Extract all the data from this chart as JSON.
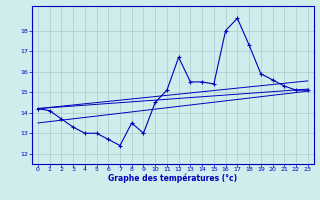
{
  "hours": [
    0,
    1,
    2,
    3,
    4,
    5,
    6,
    7,
    8,
    9,
    10,
    11,
    12,
    13,
    14,
    15,
    16,
    17,
    18,
    19,
    20,
    21,
    22,
    23
  ],
  "temp": [
    14.2,
    14.1,
    13.7,
    13.3,
    13.0,
    13.0,
    12.7,
    12.4,
    13.5,
    13.0,
    14.5,
    15.1,
    16.7,
    15.5,
    15.5,
    15.4,
    18.0,
    18.6,
    17.3,
    15.9,
    15.6,
    15.3,
    15.1,
    15.1
  ],
  "envelope_lines": [
    [
      14.2,
      15.55
    ],
    [
      14.2,
      15.15
    ],
    [
      13.5,
      15.05
    ]
  ],
  "ylim": [
    11.5,
    19.2
  ],
  "xlim": [
    -0.5,
    23.5
  ],
  "yticks": [
    12,
    13,
    14,
    15,
    16,
    17,
    18
  ],
  "xticks": [
    0,
    1,
    2,
    3,
    4,
    5,
    6,
    7,
    8,
    9,
    10,
    11,
    12,
    13,
    14,
    15,
    16,
    17,
    18,
    19,
    20,
    21,
    22,
    23
  ],
  "xlabel": "Graphe des températures (°c)",
  "line_color": "#0000bb",
  "bg_color": "#d0ecec",
  "grid_color": "#a8cccc",
  "axis_color": "#0000bb",
  "tick_label_color": "#0000bb",
  "xlabel_color": "#0000bb"
}
